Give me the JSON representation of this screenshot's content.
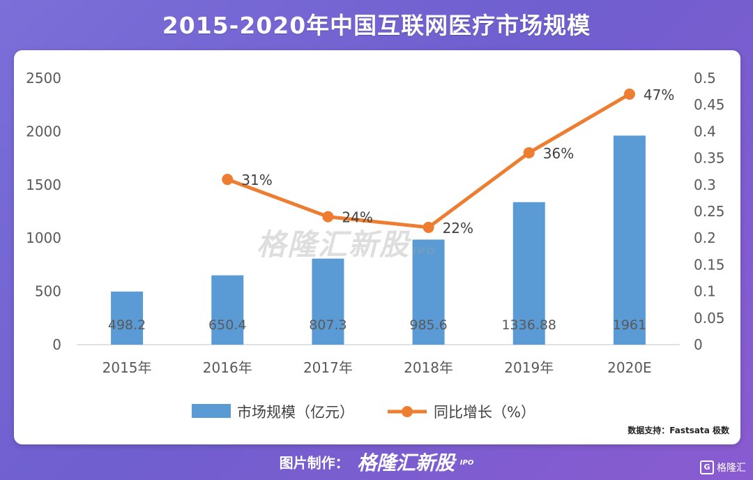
{
  "title": "2015-2020年中国互联网医疗市场规模",
  "source_note": "数据支持：Fastsata 极数",
  "footer": {
    "label": "图片制作：",
    "brand": "格隆汇新股",
    "brand_suffix": "IPO"
  },
  "watermark": {
    "text": "格隆汇新股",
    "suffix": "IPO"
  },
  "corner_logo": {
    "mark": "G",
    "text": "格隆汇"
  },
  "colors": {
    "bar": "#5b9bd5",
    "line": "#ed7d31",
    "axis_text": "#595959",
    "gridline": "#d9d9d9"
  },
  "chart_data": {
    "type": "bar+line",
    "categories": [
      "2015年",
      "2016年",
      "2017年",
      "2018年",
      "2019年",
      "2020E"
    ],
    "series": [
      {
        "name": "市场规模（亿元）",
        "type": "bar",
        "axis": "left",
        "values": [
          498.2,
          650.4,
          807.3,
          985.6,
          1336.88,
          1961
        ],
        "labels": [
          "498.2",
          "650.4",
          "807.3",
          "985.6",
          "1336.88",
          "1961"
        ]
      },
      {
        "name": "同比增长（%）",
        "type": "line",
        "axis": "right",
        "values": [
          null,
          0.31,
          0.24,
          0.22,
          0.36,
          0.47
        ],
        "labels": [
          null,
          "31%",
          "24%",
          "22%",
          "36%",
          "47%"
        ]
      }
    ],
    "y_left": {
      "min": 0,
      "max": 2500,
      "ticks": [
        "0",
        "500",
        "1000",
        "1500",
        "2000",
        "2500"
      ]
    },
    "y_right": {
      "min": 0,
      "max": 0.5,
      "ticks": [
        "0",
        "0.05",
        "0.1",
        "0.15",
        "0.2",
        "0.25",
        "0.3",
        "0.35",
        "0.4",
        "0.45",
        "0.5"
      ]
    },
    "grid": false,
    "legend_position": "bottom"
  }
}
